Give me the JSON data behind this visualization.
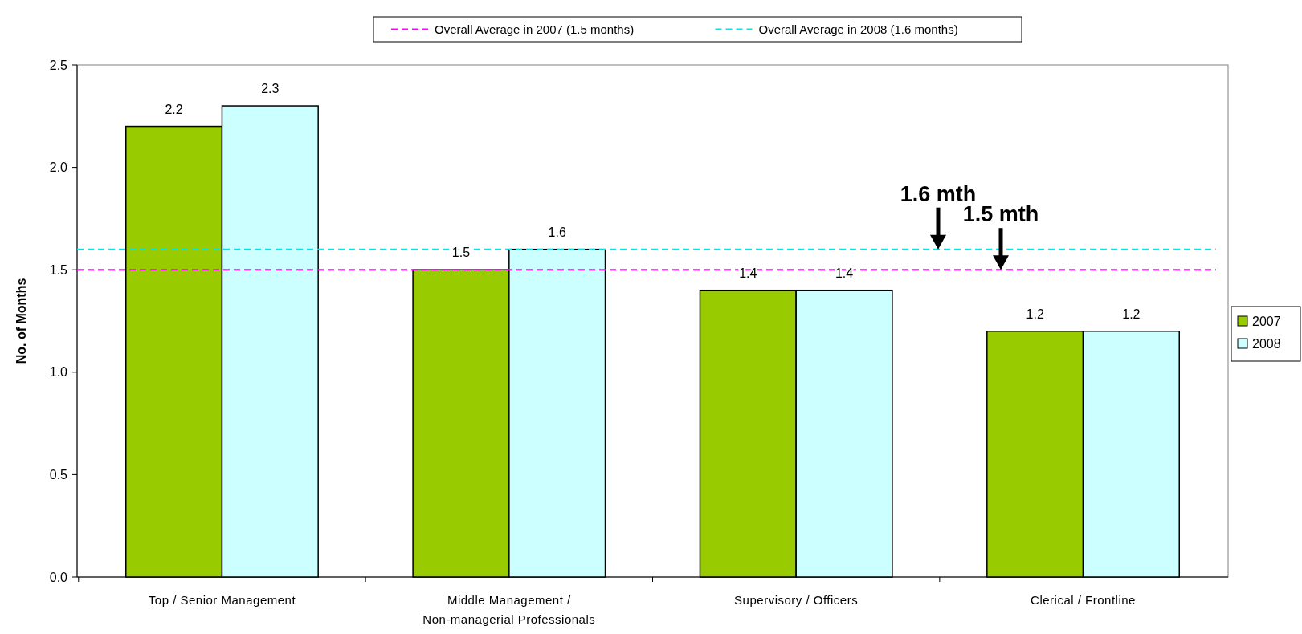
{
  "chart_data": {
    "type": "bar",
    "ylabel": "No. of Months",
    "categories": [
      "Top / Senior Management",
      "Middle Management /\nNon-managerial Professionals",
      "Supervisory / Officers",
      "Clerical / Frontline"
    ],
    "series": [
      {
        "name": "2007",
        "color": "#99cc00",
        "values": [
          2.2,
          1.5,
          1.4,
          1.2
        ]
      },
      {
        "name": "2008",
        "color": "#ccffff",
        "values": [
          2.3,
          1.6,
          1.4,
          1.2
        ]
      }
    ],
    "ylim": [
      0,
      2.5
    ],
    "yticks": [
      {
        "value": 0,
        "label": "0.0"
      },
      {
        "value": 0.5,
        "label": "0.5"
      },
      {
        "value": 1,
        "label": "1.0"
      },
      {
        "value": 1.5,
        "label": "1.5"
      },
      {
        "value": 2,
        "label": "2.0"
      },
      {
        "value": 2.5,
        "label": "2.5"
      }
    ],
    "ref_lines": [
      {
        "axis": "y",
        "value": 1.5,
        "label": "Overall Average in 2007 (1.5 months)",
        "color": "#ff00ff",
        "line_style": "dashed"
      },
      {
        "axis": "y",
        "value": 1.6,
        "label": "Overall Average in 2008 (1.6 months)",
        "color": "#00e5e5",
        "line_style": "dashed"
      }
    ],
    "annotations": [
      "1.6 mth",
      "1.5 mth"
    ],
    "data_labels": true,
    "grid": false,
    "legend": "right"
  }
}
